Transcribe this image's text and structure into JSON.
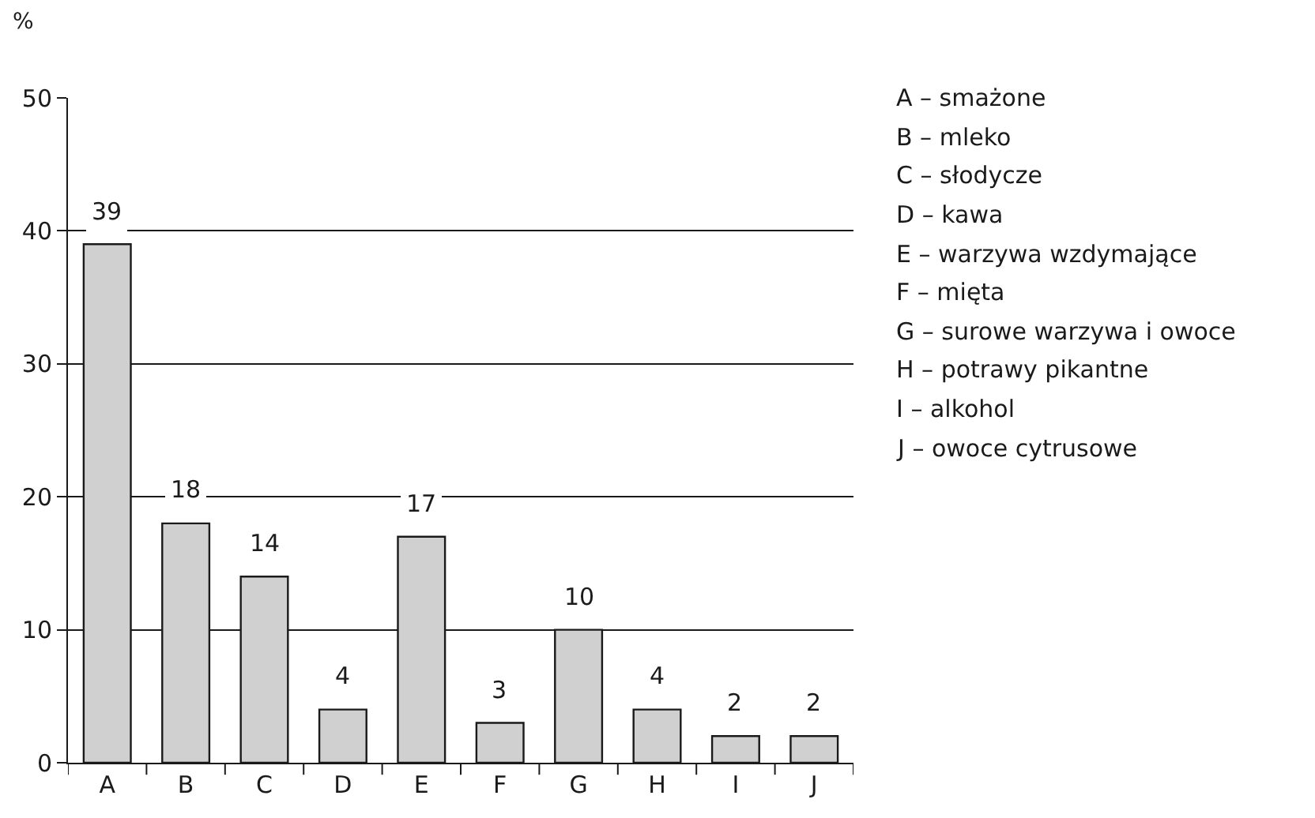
{
  "chart_data": {
    "type": "bar",
    "ylabel": "%",
    "categories": [
      "A",
      "B",
      "C",
      "D",
      "E",
      "F",
      "G",
      "H",
      "I",
      "J"
    ],
    "values": [
      39,
      18,
      14,
      4,
      17,
      3,
      10,
      4,
      2,
      2
    ],
    "color": "#d0d0d0",
    "data_labels": true,
    "grid": "y",
    "ylim": [
      0,
      50
    ],
    "yticks": [
      0,
      10,
      20,
      30,
      40,
      50
    ],
    "annotations": [
      "A – smażone",
      "B – mleko",
      "C – słodycze",
      "D – kawa",
      "E – warzywa wzdymające",
      "F – mięta",
      "G – surowe warzywa i owoce",
      "H – potrawy pikantne",
      "I – alkohol",
      "J – owoce cytrusowe"
    ]
  }
}
